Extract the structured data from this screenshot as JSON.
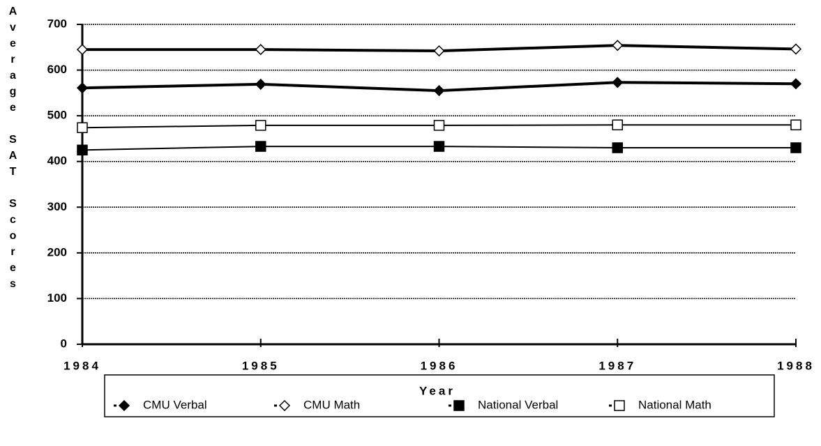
{
  "chart_data": {
    "type": "line",
    "y_label": "Average SAT Scores",
    "x_label": "Year",
    "categories": [
      "1984",
      "1985",
      "1986",
      "1987",
      "1988"
    ],
    "ylim": [
      0,
      700
    ],
    "yticks": [
      0,
      100,
      200,
      300,
      400,
      500,
      600,
      700
    ],
    "grid": true,
    "series": [
      {
        "name": "CMU Verbal",
        "color": "#000000",
        "marker": "diamond",
        "filled": true,
        "line_width": 4,
        "values": [
          561,
          569,
          555,
          573,
          570
        ]
      },
      {
        "name": "CMU Math",
        "color": "#000000",
        "marker": "diamond",
        "filled": false,
        "line_width": 4,
        "values": [
          645,
          645,
          642,
          654,
          646
        ]
      },
      {
        "name": "National Verbal",
        "color": "#000000",
        "marker": "square",
        "filled": true,
        "line_width": 2,
        "values": [
          425,
          433,
          433,
          430,
          430
        ]
      },
      {
        "name": "National Math",
        "color": "#000000",
        "marker": "square",
        "filled": false,
        "line_width": 2,
        "values": [
          474,
          479,
          479,
          480,
          480
        ]
      }
    ],
    "legend": "bottom"
  }
}
